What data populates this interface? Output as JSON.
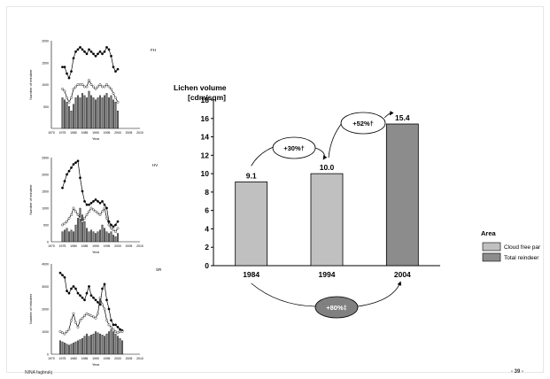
{
  "footer": {
    "left": "NINA fagbrukj",
    "right": "- 39 -"
  },
  "chart_data": [
    {
      "type": "bar",
      "title": "Lichen volume",
      "ylabel": "[cdm/sqm]",
      "categories": [
        "1984",
        "1994",
        "2004"
      ],
      "values": [
        9.1,
        10.0,
        15.4
      ],
      "data_labels": [
        "9.1",
        "10.0",
        "15.4"
      ],
      "ylim": [
        0,
        18
      ],
      "yticks": [
        0,
        2,
        4,
        6,
        8,
        10,
        12,
        14,
        16,
        18
      ],
      "bar_colors": [
        "#c0c0c0",
        "#c0c0c0",
        "#8c8c8c"
      ],
      "legend": {
        "title": "Area",
        "position": "right",
        "items": [
          {
            "label": "Cloud free par",
            "color": "#c0c0c0"
          },
          {
            "label": "Total reindeer",
            "color": "#8c8c8c"
          }
        ]
      },
      "annotations": [
        {
          "text": "+30%",
          "mark": "†",
          "from": "1984",
          "to": "1994"
        },
        {
          "text": "+52%",
          "mark": "†",
          "from": "1994",
          "to": "2004"
        },
        {
          "text": "+80%",
          "mark": "‡",
          "from": "1984",
          "to": "2004"
        }
      ]
    },
    {
      "type": "bar",
      "title": "FH",
      "xlabel": "Year",
      "ylabel": "Number of reindeer",
      "xlim": [
        1970,
        2010
      ],
      "xticks": [
        "1970",
        "1975",
        "1980",
        "1985",
        "1990",
        "1995",
        "2000",
        "2005",
        "2010"
      ],
      "ylim": [
        0,
        2000
      ],
      "yticks": [
        "500",
        "1000",
        "1500",
        "2000"
      ],
      "x": [
        1975,
        1976,
        1977,
        1978,
        1979,
        1980,
        1981,
        1982,
        1983,
        1984,
        1985,
        1986,
        1987,
        1988,
        1989,
        1990,
        1991,
        1992,
        1993,
        1994,
        1995,
        1996,
        1997,
        1998,
        1999,
        2000
      ],
      "values": [
        700,
        650,
        600,
        500,
        400,
        550,
        700,
        750,
        700,
        800,
        750,
        700,
        850,
        750,
        700,
        650,
        700,
        750,
        700,
        750,
        800,
        700,
        750,
        650,
        600,
        400
      ],
      "series": [
        {
          "name": "",
          "values": [
            1400,
            1400,
            1250,
            1150,
            1300,
            1600,
            1750,
            1800,
            1850,
            1800,
            1750,
            1700,
            1800,
            1750,
            1700,
            1650,
            1700,
            1750,
            1700,
            1750,
            1850,
            1800,
            1650,
            1400,
            1300,
            1350
          ]
        },
        {
          "name": "",
          "values": [
            900,
            850,
            700,
            600,
            700,
            900,
            950,
            1000,
            1000,
            1000,
            950,
            950,
            1100,
            1000,
            950,
            900,
            950,
            1000,
            950,
            950,
            1000,
            950,
            900,
            800,
            700,
            600
          ]
        }
      ]
    },
    {
      "type": "bar",
      "title": "HV",
      "xlabel": "Year",
      "ylabel": "Number of reindeer",
      "xlim": [
        1970,
        2010
      ],
      "xticks": [
        "1970",
        "1975",
        "1980",
        "1985",
        "1990",
        "1995",
        "2000",
        "2005",
        "2010"
      ],
      "ylim": [
        0,
        2500
      ],
      "yticks": [
        "0",
        "500",
        "1000",
        "1500",
        "2000",
        "2500"
      ],
      "x": [
        1975,
        1976,
        1977,
        1978,
        1979,
        1980,
        1981,
        1982,
        1983,
        1984,
        1985,
        1986,
        1987,
        1988,
        1989,
        1990,
        1991,
        1992,
        1993,
        1994,
        1995,
        1996,
        1997,
        1998,
        1999,
        2000
      ],
      "values": [
        300,
        350,
        400,
        300,
        350,
        300,
        500,
        700,
        1000,
        800,
        600,
        400,
        300,
        350,
        300,
        250,
        300,
        350,
        500,
        400,
        300,
        250,
        300,
        200,
        150,
        250
      ],
      "series": [
        {
          "name": "",
          "values": [
            1600,
            1800,
            2000,
            2100,
            2200,
            2300,
            2350,
            2400,
            1900,
            1500,
            1200,
            1100,
            1100,
            1150,
            1200,
            1250,
            1200,
            1150,
            1200,
            1100,
            1000,
            600,
            500,
            450,
            500,
            600
          ]
        },
        {
          "name": "",
          "values": [
            500,
            550,
            600,
            700,
            800,
            1000,
            900,
            800,
            700,
            600,
            700,
            800,
            900,
            1000,
            950,
            900,
            850,
            800,
            900,
            1000,
            700,
            500,
            400,
            350,
            300,
            400
          ]
        }
      ]
    },
    {
      "type": "bar",
      "title": "SR",
      "xlabel": "Year",
      "ylabel": "Number of reindeer",
      "xlim": [
        1970,
        2010
      ],
      "xticks": [
        "1970",
        "1975",
        "1980",
        "1985",
        "1990",
        "1995",
        "2000",
        "2005",
        "2010"
      ],
      "ylim": [
        0,
        4000
      ],
      "yticks": [
        "0",
        "1000",
        "2000",
        "3000",
        "4000"
      ],
      "x": [
        1974,
        1975,
        1976,
        1977,
        1978,
        1979,
        1980,
        1981,
        1982,
        1983,
        1984,
        1985,
        1986,
        1987,
        1988,
        1989,
        1990,
        1991,
        1992,
        1993,
        1994,
        1995,
        1996,
        1997,
        1998,
        1999,
        2000,
        2001,
        2002
      ],
      "values": [
        600,
        550,
        500,
        450,
        400,
        450,
        500,
        550,
        600,
        650,
        700,
        800,
        900,
        800,
        850,
        900,
        1000,
        950,
        900,
        850,
        800,
        900,
        1000,
        1100,
        1000,
        900,
        800,
        700,
        600
      ],
      "series": [
        {
          "name": "",
          "values": [
            3600,
            3500,
            3400,
            2800,
            2700,
            2900,
            3000,
            2900,
            2700,
            2600,
            2500,
            2400,
            2700,
            3000,
            2600,
            2500,
            2400,
            2300,
            2200,
            2900,
            3100,
            2400,
            2000,
            1500,
            1300,
            1300,
            1200,
            1100,
            1050
          ]
        },
        {
          "name": "",
          "values": [
            1000,
            950,
            900,
            1000,
            1100,
            1500,
            1800,
            1400,
            1200,
            1500,
            1600,
            1700,
            1800,
            1750,
            1700,
            1650,
            1600,
            1800,
            2500,
            2200,
            2000,
            1500,
            1300,
            1200,
            1100,
            1000,
            950,
            1000,
            1000
          ]
        }
      ]
    }
  ]
}
